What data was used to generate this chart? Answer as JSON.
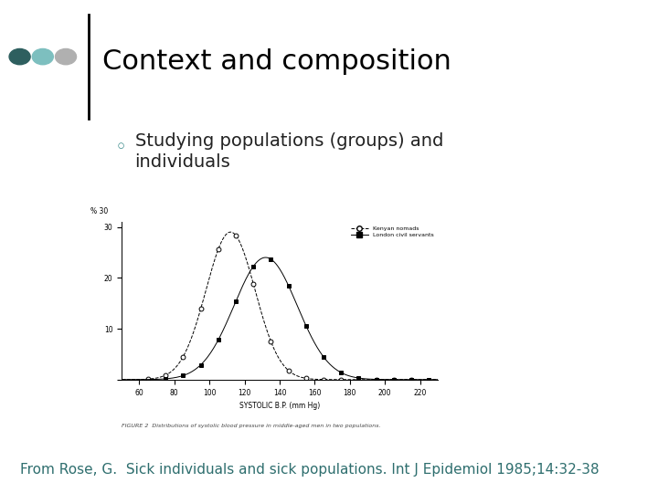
{
  "title": "Context and composition",
  "bullet_text_line1": "Studying populations (groups) and",
  "bullet_text_line2": "individuals",
  "footer_text": "From Rose, G.  Sick individuals and sick populations. Int J Epidemiol 1985;14:32-38",
  "title_color": "#000000",
  "title_fontsize": 22,
  "bullet_fontsize": 14,
  "footer_fontsize": 11,
  "footer_color": "#2e6e6e",
  "dot_colors": [
    "#2e5f5f",
    "#7dbfbf",
    "#b0b0b0"
  ],
  "vertical_bar_color": "#000000",
  "background_color": "#ffffff",
  "graph_caption": "FIGURE 2  Distributions of systolic blood pressure in middle-aged men in two populations.",
  "graph_xlabel": "SYSTOLIC B.P. (mm Hg)",
  "x_ticks": [
    60,
    80,
    100,
    120,
    140,
    160,
    180,
    200,
    220
  ],
  "y_ticks": [
    0,
    10,
    20,
    30
  ],
  "curve1_label": "Kenyan nomads",
  "curve2_label": "London civil servants",
  "curve1_mean": 112,
  "curve1_std": 14,
  "curve2_mean": 132,
  "curve2_std": 18,
  "curve1_peak": 29,
  "curve2_peak": 24,
  "bullet_color": "#3a8a8a"
}
